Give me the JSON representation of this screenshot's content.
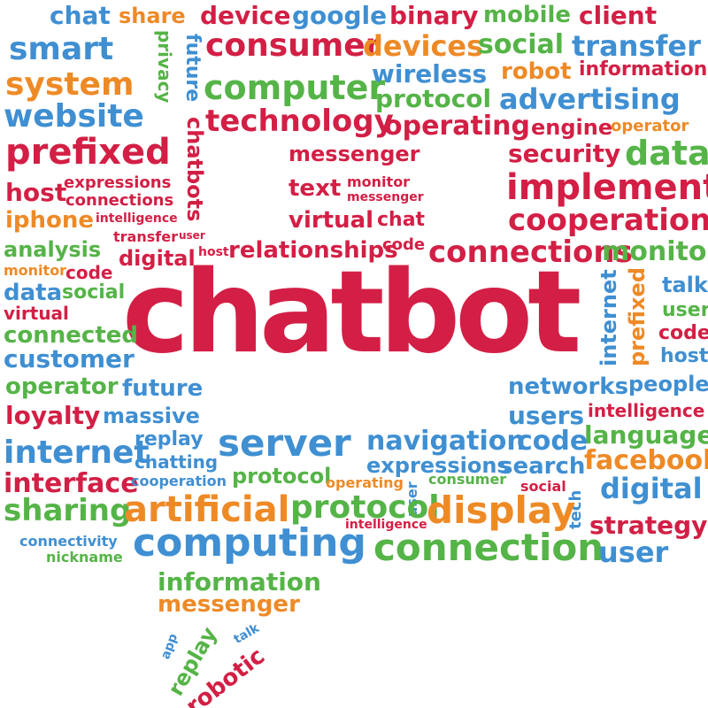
{
  "palette": {
    "red": "#d31f45",
    "blue": "#3f8fd2",
    "orange": "#ee8a26",
    "green": "#55b447"
  },
  "main_word": "chatbot",
  "words": [
    "chat",
    "share",
    "device",
    "google",
    "binary",
    "mobile",
    "client",
    "smart",
    "future",
    "privacy",
    "consumer",
    "devices",
    "social",
    "transfer",
    "system",
    "wireless",
    "robot",
    "information",
    "computer",
    "website",
    "protocol",
    "advertising",
    "technology",
    "operating",
    "engine",
    "operator",
    "chatbots",
    "prefixed",
    "messenger",
    "security",
    "data",
    "host",
    "expressions",
    "connections",
    "text",
    "monitor",
    "messenger",
    "implement",
    "iphone",
    "intelligence",
    "virtual",
    "chat",
    "cooperation",
    "transfer",
    "user",
    "analysis",
    "digital",
    "host",
    "relationships",
    "code",
    "connections",
    "monitor",
    "monitor",
    "code",
    "talk",
    "data",
    "social",
    "internet",
    "prefixed",
    "user",
    "virtual",
    "connected",
    "code",
    "customer",
    "host",
    "operator",
    "future",
    "networks",
    "people",
    "loyalty",
    "massive",
    "users",
    "intelligence",
    "replay",
    "language",
    "internet",
    "server",
    "navigation",
    "code",
    "facebook",
    "chatting",
    "expressions",
    "search",
    "interface",
    "cooperation",
    "protocol",
    "operating",
    "user",
    "consumer",
    "digital",
    "social",
    "tech",
    "sharing",
    "artificial",
    "protocol",
    "display",
    "intelligence",
    "strategy",
    "connectivity",
    "computing",
    "connection",
    "user",
    "nickname",
    "information",
    "messenger",
    "app",
    "replay",
    "talk",
    "robotic"
  ]
}
